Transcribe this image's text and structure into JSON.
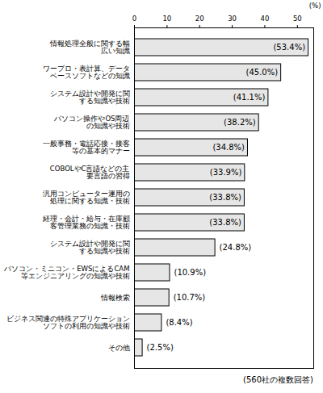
{
  "chart_data": {
    "type": "bar",
    "orientation": "horizontal",
    "x_label": "(%)",
    "caption": "(560社の複数回答)",
    "categories": [
      "情報処理全般に関する幅\n広い知識",
      "ワープロ・表計算、データ\nベースソフトなどの知識",
      "システム設計や開発に関\nする知識や技術",
      "パソコン操作やOS周辺\nの知識や技術",
      "一般事務・電話応接・接客\n等の基本的マナー",
      "COBOLやC言語などの主\n要言語の習得",
      "汎用コンピューター運用の\n処理に関する知識・技術",
      "経理・会計・給与・在庫顧\n客管理業務の知識・技術",
      "システム設計や開発に関\nする知識や技術",
      "パソコン・ミニコン・EWSによるCAM\n等エンジニアリングの知識や技術",
      "情報検索",
      "ビジネス関連の特殊アプリケーション\nソフトの利用の知識や技術",
      "その他"
    ],
    "values": [
      53.4,
      45.0,
      41.1,
      38.2,
      34.8,
      33.9,
      33.8,
      33.8,
      24.8,
      10.9,
      10.7,
      8.4,
      2.5
    ],
    "value_labels": [
      "(53.4%)",
      "(45.0%)",
      "(41.1%)",
      "(38.2%)",
      "(34.8%)",
      "(33.9%)",
      "(33.8%)",
      "(33.8%)",
      "(24.8%)",
      "(10.9%)",
      "(10.7%)",
      "(8.4%)",
      "(2.5%)"
    ],
    "data_labels": true,
    "color": "#e6e6e6",
    "xlim": [
      0,
      55
    ],
    "xticks": [
      0,
      10,
      20,
      30,
      40,
      50
    ],
    "grid": false
  }
}
